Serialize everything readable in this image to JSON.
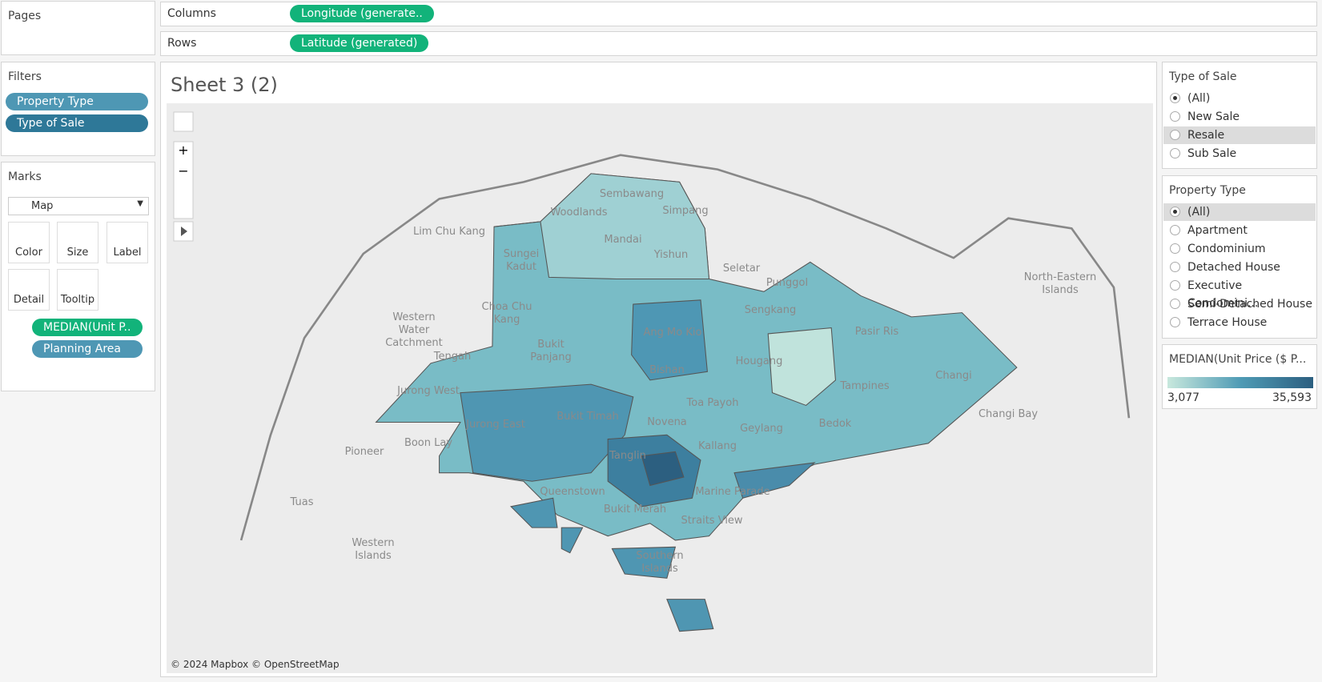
{
  "shelves": {
    "pages": "Pages",
    "columns": {
      "label": "Columns",
      "pill": "Longitude (generate.."
    },
    "rows": {
      "label": "Rows",
      "pill": "Latitude (generated)"
    }
  },
  "filters": {
    "title": "Filters",
    "items": [
      "Property Type",
      "Type of Sale"
    ]
  },
  "marks": {
    "title": "Marks",
    "mark_type": "Map",
    "buttons": [
      "Color",
      "Size",
      "Label",
      "Detail",
      "Tooltip"
    ],
    "fields": [
      "MEDIAN(Unit P..",
      "Planning Area"
    ]
  },
  "sheet": {
    "title": "Sheet 3 (2)",
    "attribution": "© 2024 Mapbox © OpenStreetMap",
    "place_labels": [
      "Lim Chu Kang",
      "Western Water Catchment",
      "Tuas",
      "Western Islands",
      "Pioneer",
      "Boon Lay",
      "Jurong West",
      "Tengah",
      "Jurong East",
      "Choa Chu Kang",
      "Sungei Kadut",
      "Woodlands",
      "Sembawang",
      "Simpang",
      "Mandai",
      "Yishun",
      "Seletar",
      "Punggol",
      "Sengkang",
      "Ang Mo Kio",
      "Bukit Panjang",
      "Bishan",
      "Hougang",
      "Pasir Ris",
      "Tampines",
      "Changi",
      "Changi Bay",
      "North-Eastern Islands",
      "Toa Payoh",
      "Bukit Timah",
      "Novena",
      "Geylang",
      "Bedok",
      "Tanglin",
      "Kallang",
      "Marine Parade",
      "Queenstown",
      "Bukit Merah",
      "Straits View",
      "Southern Islands"
    ]
  },
  "type_of_sale": {
    "title": "Type of Sale",
    "options": [
      "(All)",
      "New Sale",
      "Resale",
      "Sub Sale"
    ],
    "selected": 0,
    "highlighted": 2
  },
  "property_type": {
    "title": "Property Type",
    "options": [
      "(All)",
      "Apartment",
      "Condominium",
      "Detached House",
      "Executive Condomini...",
      "Semi-Detached House",
      "Terrace House"
    ],
    "selected": 0,
    "highlighted": 0
  },
  "legend": {
    "title": "MEDIAN(Unit Price ($ P...",
    "min": "3,077",
    "max": "35,593"
  }
}
